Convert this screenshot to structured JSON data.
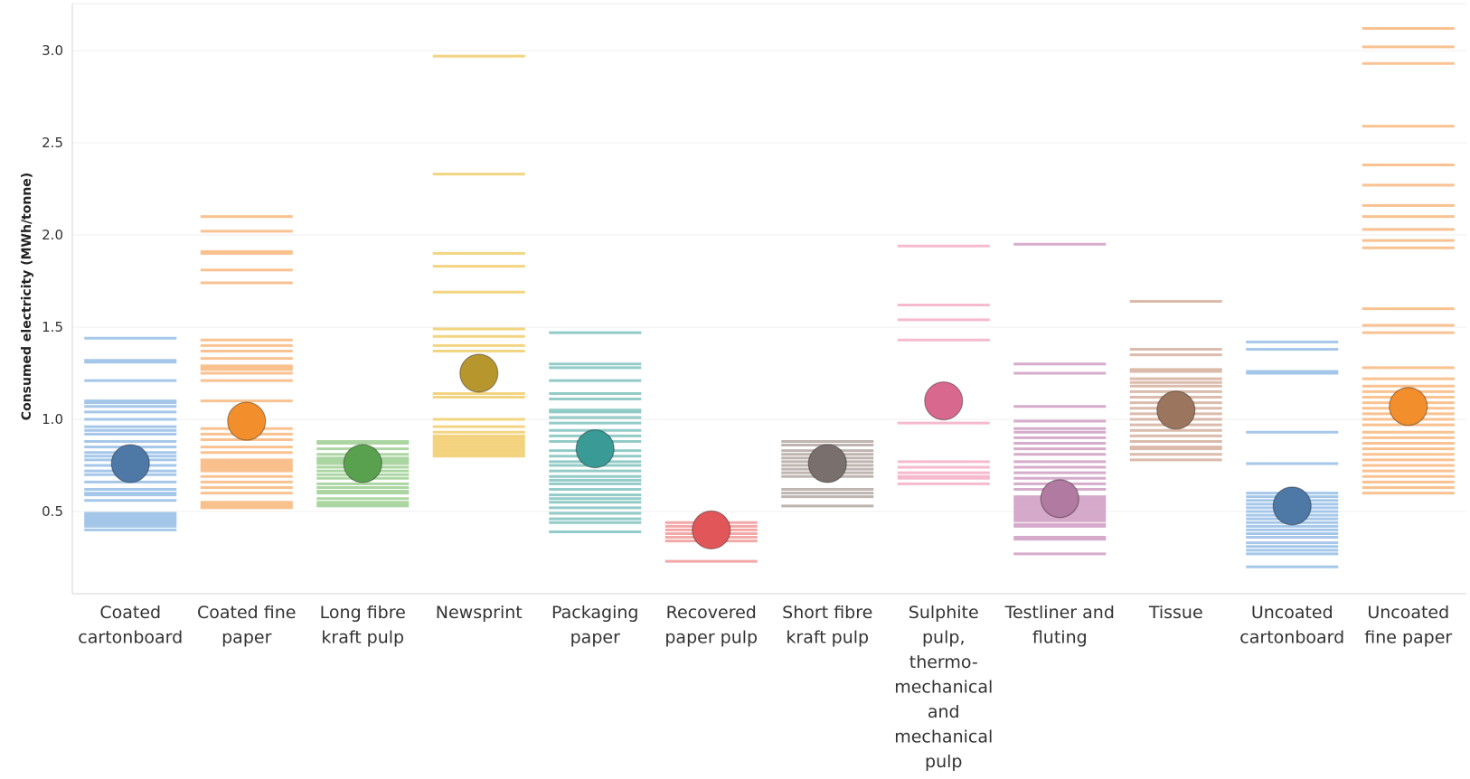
{
  "chart_data": {
    "type": "strip-dot",
    "title": "",
    "xlabel": "",
    "ylabel": "Consumed electricity (MWh/tonne)",
    "ylim": [
      0.0,
      3.2
    ],
    "yticks": [
      0.5,
      1.0,
      1.5,
      2.0,
      2.5,
      3.0
    ],
    "ytick_labels": [
      "0.5",
      "1.0",
      "1.5",
      "2.0",
      "2.5",
      "3.0"
    ],
    "grid": true,
    "legend": "none",
    "categories": [
      {
        "label_lines": [
          "Coated",
          "cartonboard"
        ],
        "color": "#4e79a7",
        "light_color": "#a0c4e8",
        "average": 0.76,
        "values": [
          1.44,
          1.32,
          1.31,
          1.21,
          1.1,
          1.09,
          1.07,
          1.04,
          1.0,
          0.96,
          0.94,
          0.92,
          0.88,
          0.85,
          0.82,
          0.8,
          0.78,
          0.75,
          0.72,
          0.7,
          0.66,
          0.62,
          0.6,
          0.59,
          0.56,
          0.49,
          0.48,
          0.47,
          0.46,
          0.45,
          0.44,
          0.43,
          0.42,
          0.4
        ]
      },
      {
        "label_lines": [
          "Coated fine",
          "paper"
        ],
        "color": "#f28e2b",
        "light_color": "#f9bf8a",
        "average": 0.99,
        "values": [
          2.1,
          2.02,
          1.91,
          1.9,
          1.81,
          1.74,
          1.43,
          1.4,
          1.37,
          1.33,
          1.29,
          1.28,
          1.27,
          1.25,
          1.21,
          1.1,
          0.95,
          0.92,
          0.89,
          0.85,
          0.82,
          0.78,
          0.77,
          0.76,
          0.75,
          0.74,
          0.73,
          0.72,
          0.69,
          0.66,
          0.63,
          0.6,
          0.55,
          0.54,
          0.53,
          0.52
        ]
      },
      {
        "label_lines": [
          "Long fibre",
          "kraft pulp"
        ],
        "color": "#59a14f",
        "light_color": "#a8d49e",
        "average": 0.76,
        "values": [
          0.88,
          0.87,
          0.84,
          0.81,
          0.79,
          0.78,
          0.77,
          0.76,
          0.74,
          0.72,
          0.7,
          0.68,
          0.65,
          0.63,
          0.61,
          0.6,
          0.57,
          0.55,
          0.54,
          0.53
        ]
      },
      {
        "label_lines": [
          "Newsprint"
        ],
        "color": "#b8962e",
        "light_color": "#f2d27a",
        "average": 1.25,
        "values": [
          2.97,
          2.33,
          1.9,
          1.83,
          1.69,
          1.49,
          1.45,
          1.4,
          1.37,
          1.14,
          1.12,
          1.0,
          0.96,
          0.93,
          0.91,
          0.9,
          0.89,
          0.88,
          0.87,
          0.86,
          0.85,
          0.84,
          0.83,
          0.82,
          0.81,
          0.8
        ]
      },
      {
        "label_lines": [
          "Packaging",
          "paper"
        ],
        "color": "#3a9a96",
        "light_color": "#8cc8c4",
        "average": 0.84,
        "values": [
          1.47,
          1.3,
          1.28,
          1.21,
          1.14,
          1.11,
          1.05,
          1.04,
          1.01,
          0.98,
          0.94,
          0.91,
          0.88,
          0.83,
          0.8,
          0.77,
          0.75,
          0.72,
          0.69,
          0.67,
          0.65,
          0.62,
          0.59,
          0.57,
          0.55,
          0.52,
          0.49,
          0.46,
          0.44,
          0.39
        ]
      },
      {
        "label_lines": [
          "Recovered",
          "paper pulp"
        ],
        "color": "#e15759",
        "light_color": "#f2a3a3",
        "average": 0.4,
        "values": [
          0.44,
          0.42,
          0.4,
          0.38,
          0.36,
          0.34,
          0.23
        ]
      },
      {
        "label_lines": [
          "Short fibre",
          "kraft pulp"
        ],
        "color": "#79706e",
        "light_color": "#bab0ac",
        "average": 0.76,
        "values": [
          0.88,
          0.86,
          0.83,
          0.81,
          0.79,
          0.77,
          0.75,
          0.73,
          0.71,
          0.69,
          0.62,
          0.6,
          0.58,
          0.53
        ]
      },
      {
        "label_lines": [
          "Sulphite",
          "pulp,",
          "thermo-",
          "mechanical",
          "and",
          "mechanical",
          "pulp"
        ],
        "color": "#d9688f",
        "light_color": "#f5b6cc",
        "average": 1.1,
        "values": [
          1.94,
          1.62,
          1.54,
          1.43,
          0.98,
          0.77,
          0.74,
          0.71,
          0.69,
          0.68,
          0.65
        ]
      },
      {
        "label_lines": [
          "Testliner and",
          "fluting"
        ],
        "color": "#b07aa1",
        "light_color": "#d4a6c8",
        "average": 0.57,
        "values": [
          1.95,
          1.3,
          1.25,
          1.07,
          0.99,
          0.95,
          0.93,
          0.9,
          0.87,
          0.84,
          0.81,
          0.77,
          0.74,
          0.71,
          0.68,
          0.65,
          0.62,
          0.58,
          0.57,
          0.56,
          0.55,
          0.54,
          0.53,
          0.52,
          0.51,
          0.5,
          0.49,
          0.48,
          0.47,
          0.46,
          0.45,
          0.43,
          0.42,
          0.36,
          0.35,
          0.27
        ]
      },
      {
        "label_lines": [
          "Tissue"
        ],
        "color": "#9c755f",
        "light_color": "#d9b7a6",
        "average": 1.05,
        "values": [
          1.64,
          1.38,
          1.35,
          1.27,
          1.26,
          1.22,
          1.2,
          1.18,
          1.15,
          1.12,
          1.09,
          1.06,
          1.03,
          1.0,
          0.97,
          0.94,
          0.91,
          0.88,
          0.85,
          0.84,
          0.81,
          0.78
        ]
      },
      {
        "label_lines": [
          "Uncoated",
          "cartonboard"
        ],
        "color": "#4e79a7",
        "light_color": "#a0c4e8",
        "average": 0.53,
        "values": [
          1.42,
          1.38,
          1.26,
          1.25,
          0.93,
          0.76,
          0.6,
          0.58,
          0.56,
          0.54,
          0.52,
          0.5,
          0.48,
          0.46,
          0.44,
          0.42,
          0.4,
          0.38,
          0.36,
          0.33,
          0.31,
          0.29,
          0.27,
          0.2
        ]
      },
      {
        "label_lines": [
          "Uncoated",
          "fine paper"
        ],
        "color": "#f28e2b",
        "light_color": "#f9bf8a",
        "average": 1.07,
        "values": [
          3.12,
          3.02,
          2.93,
          2.59,
          2.38,
          2.27,
          2.16,
          2.1,
          2.03,
          1.97,
          1.93,
          1.6,
          1.51,
          1.47,
          1.28,
          1.22,
          1.18,
          1.15,
          1.12,
          1.09,
          1.06,
          1.03,
          1.0,
          0.97,
          0.93,
          0.9,
          0.87,
          0.84,
          0.81,
          0.78,
          0.75,
          0.72,
          0.69,
          0.66,
          0.63,
          0.6
        ]
      }
    ]
  }
}
